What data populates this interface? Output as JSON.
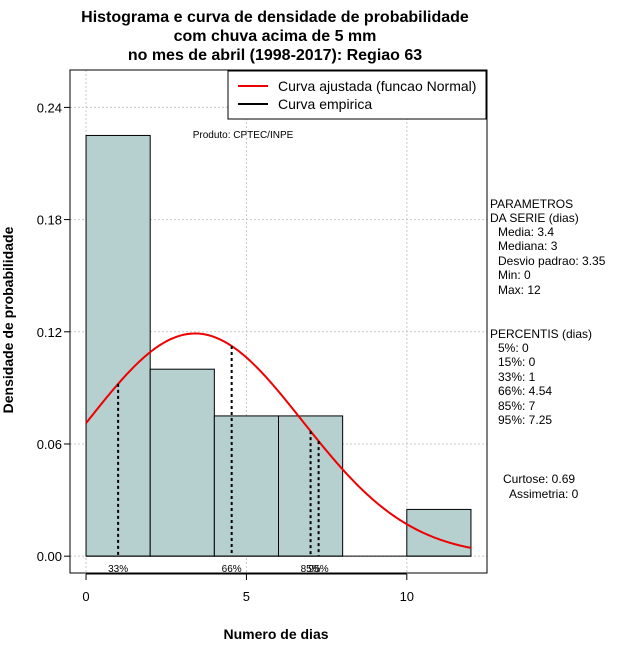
{
  "chart_data": {
    "type": "bar",
    "title_lines": [
      "Histograma e curva de densidade de probabilidade",
      "com chuva acima de 5 mm",
      "no mes de abril (1998-2017): Regiao 63"
    ],
    "xlabel": "Numero de dias",
    "ylabel": "Densidade de probabilidade",
    "xlim": [
      -0.5,
      12.5
    ],
    "ylim": [
      -0.009,
      0.26
    ],
    "x_ticks": [
      0,
      5,
      10
    ],
    "y_ticks": [
      0.0,
      0.06,
      0.12,
      0.18,
      0.24
    ],
    "y_tick_labels": [
      "0.00",
      "0.06",
      "0.12",
      "0.18",
      "0.24"
    ],
    "bins": [
      {
        "start": 0,
        "end": 2,
        "density": 0.225
      },
      {
        "start": 2,
        "end": 4,
        "density": 0.1
      },
      {
        "start": 4,
        "end": 6,
        "density": 0.075
      },
      {
        "start": 6,
        "end": 8,
        "density": 0.075
      },
      {
        "start": 8,
        "end": 10,
        "density": 0.0
      },
      {
        "start": 10,
        "end": 12,
        "density": 0.025
      }
    ],
    "bar_color": "#b6cfcf",
    "normal_curve": {
      "mean": 3.4,
      "sd": 3.35,
      "x_from": 0,
      "x_to": 12,
      "color": "#ee0000",
      "legend": "Curva ajustada (funcao Normal)"
    },
    "empirical_legend": "Curva empirica",
    "percentile_lines": [
      {
        "x": 1,
        "label": "33%"
      },
      {
        "x": 4.54,
        "label": "66%"
      },
      {
        "x": 7,
        "label": "85%"
      },
      {
        "x": 7.25,
        "label": "95%"
      }
    ],
    "product_label": "Produto: CPTEC/INPE",
    "grid": true,
    "legend_position": "top-right"
  },
  "side_panel": {
    "params_title": [
      "PARAMETROS",
      "DA SERIE (dias)"
    ],
    "params": [
      "Media: 3.4",
      "Mediana: 3",
      "Desvio padrao: 3.35",
      "Min: 0",
      "Max: 12"
    ],
    "percentis_title": "PERCENTIS (dias)",
    "percentis": [
      "5%: 0",
      "15%: 0",
      "33%: 1",
      "66%: 4.54",
      "85%: 7",
      "95%: 7.25"
    ],
    "curtose": "Curtose: 0.69",
    "assimetria": "Assimetria: 0"
  }
}
